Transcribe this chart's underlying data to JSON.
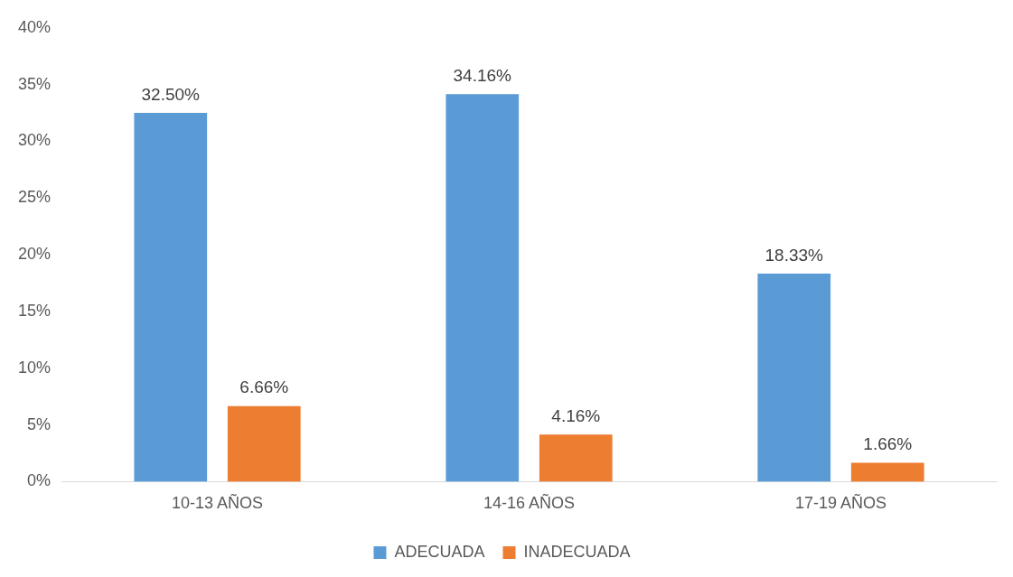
{
  "chart_data": {
    "type": "bar",
    "categories": [
      "10-13 AÑOS",
      "14-16 AÑOS",
      "17-19 AÑOS"
    ],
    "series": [
      {
        "name": "ADECUADA",
        "color": "#5b9bd5",
        "values": [
          32.5,
          34.16,
          18.33
        ],
        "value_labels": [
          "32.50%",
          "34.16%",
          "18.33%"
        ]
      },
      {
        "name": "INADECUADA",
        "color": "#ed7d31",
        "values": [
          6.66,
          4.16,
          1.66
        ],
        "value_labels": [
          "6.66%",
          "4.16%",
          "1.66%"
        ]
      }
    ],
    "ylim": [
      0,
      40
    ],
    "yticks": [
      {
        "value": 0,
        "label": "0%"
      },
      {
        "value": 5,
        "label": "5%"
      },
      {
        "value": 10,
        "label": "10%"
      },
      {
        "value": 15,
        "label": "15%"
      },
      {
        "value": 20,
        "label": "20%"
      },
      {
        "value": 25,
        "label": "25%"
      },
      {
        "value": 30,
        "label": "30%"
      },
      {
        "value": 35,
        "label": "35%"
      },
      {
        "value": 40,
        "label": "40%"
      }
    ],
    "grid": false,
    "legend": "bottom"
  }
}
